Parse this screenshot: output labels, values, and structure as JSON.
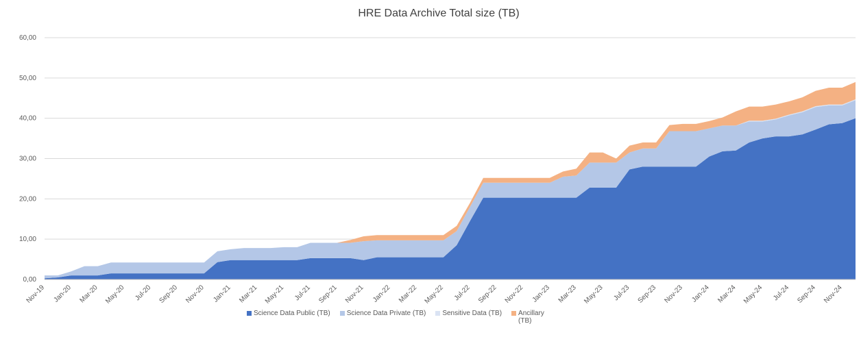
{
  "chart_data": {
    "type": "stacked_area",
    "title": "HRE Data Archive Total size (TB)",
    "categories": [
      "Nov-19",
      null,
      "Jan-20",
      null,
      "Mar-20",
      null,
      "May-20",
      null,
      "Jul-20",
      null,
      "Sep-20",
      null,
      "Nov-20",
      null,
      "Jan-21",
      null,
      "Mar-21",
      null,
      "May-21",
      null,
      "Jul-21",
      null,
      "Sep-21",
      null,
      "Nov-21",
      null,
      "Jan-22",
      null,
      "Mar-22",
      null,
      "May-22",
      null,
      "Jul-22",
      null,
      "Sep-22",
      null,
      "Nov-22",
      null,
      "Jan-23",
      null,
      "Mar-23",
      null,
      "May-23",
      null,
      "Jul-23",
      null,
      "Sep-23",
      null,
      "Nov-23",
      null,
      "Jan-24",
      null,
      "Mar-24",
      null,
      "May-24",
      null,
      "Jul-24",
      null,
      "Sep-24",
      null,
      "Nov-24",
      null
    ],
    "series": [
      {
        "name": "Science Data Public (TB)",
        "color": "#4472c4",
        "values": [
          0.3,
          0.5,
          1.0,
          1.0,
          1.0,
          1.5,
          1.5,
          1.5,
          1.5,
          1.5,
          1.5,
          1.5,
          1.5,
          4.3,
          4.8,
          4.8,
          4.8,
          4.8,
          4.8,
          4.8,
          5.3,
          5.3,
          5.3,
          5.3,
          4.8,
          5.5,
          5.5,
          5.5,
          5.5,
          5.5,
          5.5,
          8.5,
          14.5,
          20.3,
          20.3,
          20.3,
          20.3,
          20.3,
          20.3,
          20.3,
          20.3,
          22.8,
          22.8,
          22.8,
          27.3,
          28.0,
          28.0,
          28.0,
          28.0,
          28.0,
          30.5,
          31.8,
          32.0,
          34.0,
          35.0,
          35.5,
          35.5,
          36.0,
          37.2,
          38.5,
          38.8,
          40.0
        ]
      },
      {
        "name": "Science Data Private (TB)",
        "color": "#b4c7e7",
        "values": [
          0.7,
          0.5,
          1.0,
          2.3,
          2.3,
          2.7,
          2.7,
          2.7,
          2.7,
          2.7,
          2.7,
          2.7,
          2.7,
          2.7,
          2.7,
          3.0,
          3.0,
          3.0,
          3.2,
          3.2,
          3.8,
          3.8,
          3.8,
          3.8,
          4.7,
          4.2,
          4.2,
          4.2,
          4.2,
          4.2,
          4.2,
          3.5,
          3.5,
          3.7,
          3.7,
          3.7,
          3.7,
          3.7,
          3.7,
          5.2,
          5.5,
          6.2,
          6.2,
          6.2,
          4.2,
          4.5,
          4.5,
          8.8,
          8.8,
          8.8,
          7.0,
          6.4,
          6.2,
          5.2,
          4.2,
          4.2,
          5.2,
          5.5,
          5.6,
          4.7,
          4.4,
          4.5
        ]
      },
      {
        "name": "Sensitive Data (TB)",
        "color": "#dae3f3",
        "values": [
          0,
          0,
          0,
          0,
          0,
          0,
          0,
          0,
          0,
          0,
          0,
          0,
          0,
          0,
          0,
          0,
          0,
          0,
          0,
          0,
          0,
          0,
          0,
          0,
          0,
          0,
          0,
          0,
          0,
          0,
          0,
          0,
          0,
          0,
          0,
          0,
          0,
          0,
          0,
          0,
          0,
          0,
          0,
          0,
          0,
          0,
          0,
          0,
          0,
          0,
          0,
          0,
          0,
          0.2,
          0.2,
          0.2,
          0.2,
          0.2,
          0.2,
          0.2,
          0.2,
          0.2
        ]
      },
      {
        "name": "Ancillary (TB)",
        "color": "#f4b183",
        "values": [
          0,
          0,
          0,
          0,
          0,
          0,
          0,
          0,
          0,
          0,
          0,
          0,
          0,
          0,
          0,
          0,
          0,
          0,
          0,
          0,
          0,
          0,
          0,
          0.7,
          1.2,
          1.3,
          1.3,
          1.3,
          1.3,
          1.3,
          1.3,
          1.3,
          1.0,
          1.2,
          1.2,
          1.2,
          1.2,
          1.2,
          1.2,
          1.3,
          1.7,
          2.5,
          2.5,
          1.0,
          1.7,
          1.5,
          1.5,
          1.5,
          1.8,
          1.8,
          1.8,
          2.0,
          3.5,
          3.5,
          3.5,
          3.5,
          3.3,
          3.5,
          3.8,
          4.2,
          4.2,
          4.3
        ]
      }
    ],
    "ylim": [
      0,
      60
    ],
    "yticks": [
      {
        "value": 0,
        "label": "0,00"
      },
      {
        "value": 10,
        "label": "10,00"
      },
      {
        "value": 20,
        "label": "20,00"
      },
      {
        "value": 30,
        "label": "30,00"
      },
      {
        "value": 40,
        "label": "40,00"
      },
      {
        "value": 50,
        "label": "50,00"
      },
      {
        "value": 60,
        "label": "60,00"
      }
    ],
    "grid": true,
    "legend": "bottom"
  }
}
